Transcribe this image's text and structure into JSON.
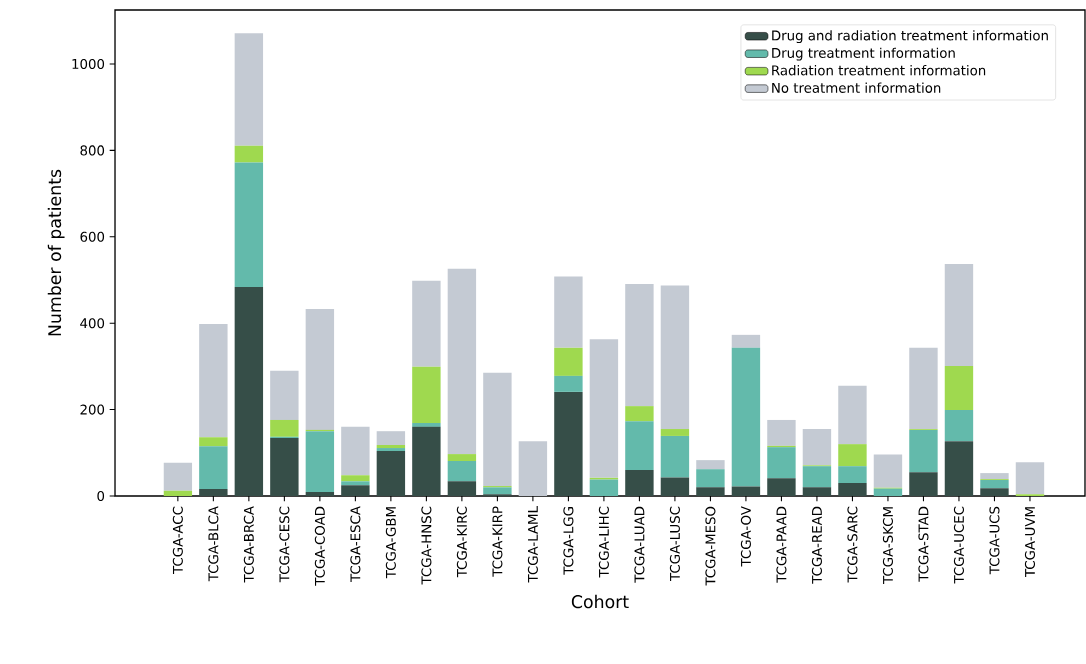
{
  "chart_data": {
    "type": "bar",
    "stacked": true,
    "xlabel": "Cohort",
    "ylabel": "Number of patients",
    "categories": [
      "TCGA-ACC",
      "TCGA-BLCA",
      "TCGA-BRCA",
      "TCGA-CESC",
      "TCGA-COAD",
      "TCGA-ESCA",
      "TCGA-GBM",
      "TCGA-HNSC",
      "TCGA-KIRC",
      "TCGA-KIRP",
      "TCGA-LAML",
      "TCGA-LGG",
      "TCGA-LIHC",
      "TCGA-LUAD",
      "TCGA-LUSC",
      "TCGA-MESO",
      "TCGA-OV",
      "TCGA-PAAD",
      "TCGA-READ",
      "TCGA-SARC",
      "TCGA-SKCM",
      "TCGA-STAD",
      "TCGA-UCEC",
      "TCGA-UCS",
      "TCGA-UVM"
    ],
    "series": [
      {
        "name": "Drug and radiation treatment information",
        "color": "#364e48",
        "values": [
          null,
          16,
          484,
          134,
          9,
          25,
          104,
          160,
          34,
          4,
          0,
          241,
          null,
          60,
          43,
          20,
          22,
          41,
          20,
          30,
          null,
          55,
          127,
          18,
          0
        ]
      },
      {
        "name": "Drug treatment information",
        "color": "#63baab",
        "values": [
          0,
          99,
          288,
          3,
          141,
          9,
          7,
          9,
          47,
          16,
          0,
          37,
          38,
          113,
          96,
          42,
          321,
          72,
          49,
          39,
          17,
          98,
          72,
          19,
          0
        ]
      },
      {
        "name": "Radiation treatment information",
        "color": "#9fd94f",
        "values": [
          12,
          21,
          39,
          39,
          3,
          14,
          7,
          130,
          16,
          3,
          0,
          65,
          4,
          35,
          16,
          0,
          0,
          3,
          2,
          51,
          2,
          2,
          102,
          2,
          4
        ]
      },
      {
        "name": "No treatment information",
        "color": "#c4cad3",
        "values": [
          65,
          262,
          260,
          114,
          280,
          112,
          32,
          199,
          429,
          262,
          127,
          165,
          321,
          283,
          332,
          21,
          30,
          60,
          84,
          135,
          77,
          188,
          236,
          14,
          74
        ]
      }
    ],
    "ylim": [
      0,
      1125
    ],
    "yticks": [
      0,
      200,
      400,
      600,
      800,
      1000
    ],
    "legend": "top right",
    "grid": false
  }
}
